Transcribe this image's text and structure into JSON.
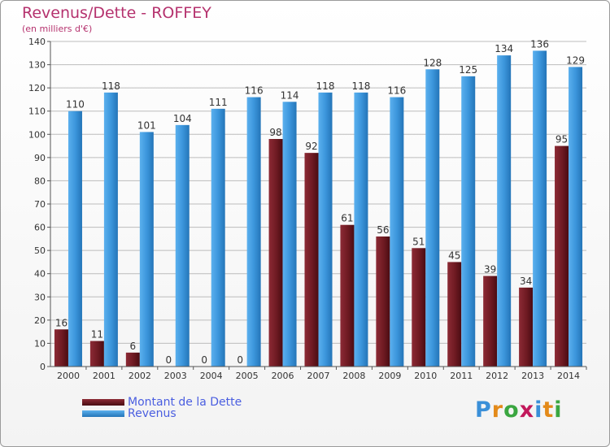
{
  "chart_data": {
    "type": "bar",
    "title": "Revenus/Dette - ROFFEY",
    "subtitle": "(en milliers d'€)",
    "categories": [
      "2000",
      "2001",
      "2002",
      "2003",
      "2004",
      "2005",
      "2006",
      "2007",
      "2008",
      "2009",
      "2010",
      "2011",
      "2012",
      "2013",
      "2014"
    ],
    "series": [
      {
        "name": "Montant de la Dette",
        "color": "#7a1f2a",
        "values": [
          16,
          11,
          6,
          0,
          0,
          0,
          98,
          92,
          61,
          56,
          51,
          45,
          39,
          34,
          95
        ]
      },
      {
        "name": "Revenus",
        "color": "#3c96dc",
        "values": [
          110,
          118,
          101,
          104,
          111,
          116,
          114,
          118,
          118,
          116,
          128,
          125,
          134,
          136,
          129
        ]
      }
    ],
    "ylim": [
      0,
      140
    ],
    "yticks": [
      0,
      10,
      20,
      30,
      40,
      50,
      60,
      70,
      80,
      90,
      100,
      110,
      120,
      130,
      140
    ],
    "grid": true,
    "legend": "bottom-left"
  },
  "logo": {
    "text": "Proxiti"
  }
}
